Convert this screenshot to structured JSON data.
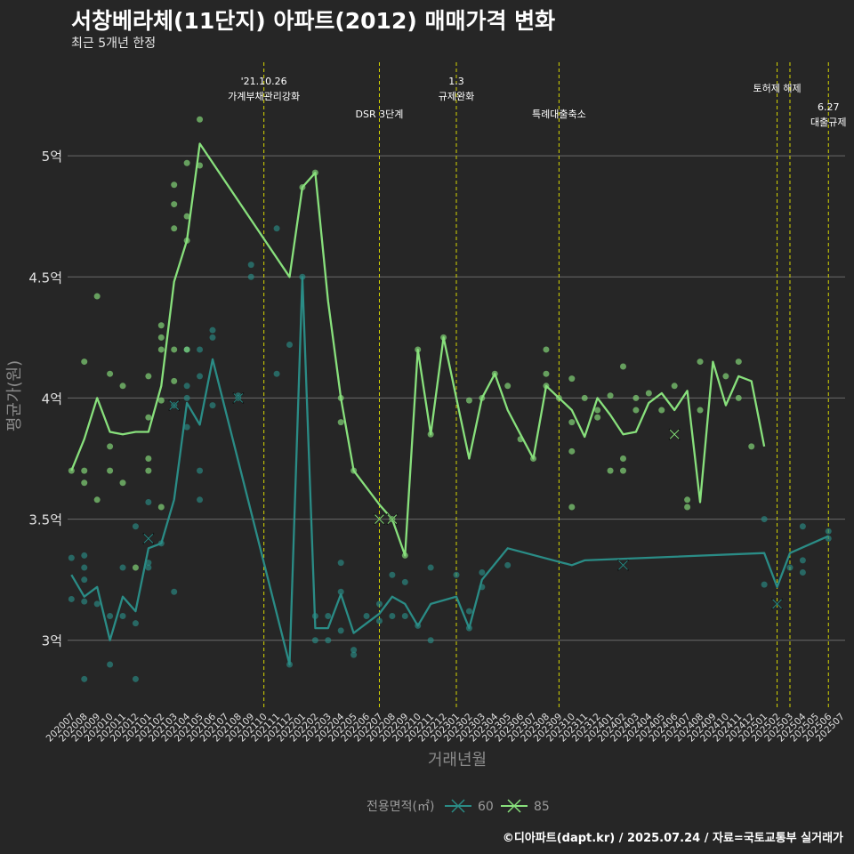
{
  "header": {
    "title": "서창베라체(11단지) 아파트(2012) 매매가격 변화",
    "subtitle": "최근 5개년 한정"
  },
  "footer": "©디아파트(dapt.kr) / 2025.07.24 / 자료=국토교통부 실거래가",
  "colors": {
    "background": "#262626",
    "grid": "#6a6a6a",
    "event_line": "#d6d600",
    "series_60": "#2a8c86",
    "series_85": "#88e07c"
  },
  "chart_data": {
    "type": "line",
    "xlabel": "거래년월",
    "ylabel": "평균가(원)",
    "ylim": [
      2.72,
      5.43
    ],
    "y_ticks": [
      3.0,
      3.5,
      4.0,
      4.5,
      5.0
    ],
    "y_tick_labels": [
      "3억",
      "3.5억",
      "4억",
      "4.5억",
      "5억"
    ],
    "categories": [
      "202007",
      "202008",
      "202009",
      "202010",
      "202011",
      "202012",
      "202101",
      "202102",
      "202103",
      "202104",
      "202105",
      "202106",
      "202107",
      "202108",
      "202109",
      "202110",
      "202111",
      "202112",
      "202201",
      "202202",
      "202203",
      "202204",
      "202205",
      "202206",
      "202207",
      "202208",
      "202209",
      "202210",
      "202211",
      "202212",
      "202301",
      "202302",
      "202303",
      "202304",
      "202305",
      "202306",
      "202307",
      "202308",
      "202309",
      "202310",
      "202311",
      "202312",
      "202401",
      "202402",
      "202403",
      "202404",
      "202405",
      "202406",
      "202407",
      "202408",
      "202409",
      "202410",
      "202411",
      "202412",
      "202501",
      "202502",
      "202503",
      "202504",
      "202505",
      "202506",
      "202507"
    ],
    "legend": {
      "title": "전용면적(㎡)",
      "position": "bottom",
      "entries": [
        "60",
        "85"
      ]
    },
    "series": [
      {
        "name": "60",
        "line": [
          [
            "202007",
            3.27
          ],
          [
            "202008",
            3.18
          ],
          [
            "202009",
            3.22
          ],
          [
            "202010",
            3.0
          ],
          [
            "202011",
            3.18
          ],
          [
            "202012",
            3.12
          ],
          [
            "202101",
            3.38
          ],
          [
            "202102",
            3.4
          ],
          [
            "202103",
            3.58
          ],
          [
            "202104",
            3.98
          ],
          [
            "202105",
            3.89
          ],
          [
            "202106",
            4.16
          ],
          [
            "202112",
            2.9
          ],
          [
            "202201",
            4.5
          ],
          [
            "202202",
            3.05
          ],
          [
            "202203",
            3.05
          ],
          [
            "202204",
            3.19
          ],
          [
            "202205",
            3.03
          ],
          [
            "202206",
            3.07
          ],
          [
            "202207",
            3.11
          ],
          [
            "202208",
            3.18
          ],
          [
            "202209",
            3.15
          ],
          [
            "202210",
            3.06
          ],
          [
            "202211",
            3.15
          ],
          [
            "202301",
            3.18
          ],
          [
            "202302",
            3.05
          ],
          [
            "202303",
            3.25
          ],
          [
            "202305",
            3.38
          ],
          [
            "202310",
            3.31
          ],
          [
            "202311",
            3.33
          ],
          [
            "202501",
            3.36
          ],
          [
            "202502",
            3.22
          ],
          [
            "202503",
            3.36
          ],
          [
            "202506",
            3.43
          ]
        ],
        "points": [
          [
            "202007",
            3.34
          ],
          [
            "202007",
            3.17
          ],
          [
            "202008",
            3.35
          ],
          [
            "202008",
            3.3
          ],
          [
            "202008",
            3.16
          ],
          [
            "202008",
            3.25
          ],
          [
            "202008",
            2.84
          ],
          [
            "202009",
            3.15
          ],
          [
            "202010",
            2.9
          ],
          [
            "202010",
            3.1
          ],
          [
            "202011",
            3.3
          ],
          [
            "202011",
            3.1
          ],
          [
            "202012",
            3.07
          ],
          [
            "202012",
            2.84
          ],
          [
            "202012",
            3.47
          ],
          [
            "202101",
            3.3
          ],
          [
            "202101",
            3.32
          ],
          [
            "202101",
            3.57
          ],
          [
            "202102",
            3.4
          ],
          [
            "202103",
            3.2
          ],
          [
            "202103",
            3.97
          ],
          [
            "202104",
            3.88
          ],
          [
            "202104",
            4.05
          ],
          [
            "202104",
            4.2
          ],
          [
            "202104",
            4.0
          ],
          [
            "202105",
            4.2
          ],
          [
            "202105",
            3.58
          ],
          [
            "202105",
            3.7
          ],
          [
            "202105",
            4.09
          ],
          [
            "202106",
            4.25
          ],
          [
            "202106",
            4.28
          ],
          [
            "202106",
            3.97
          ],
          [
            "202108",
            4.0
          ],
          [
            "202108",
            4.01
          ],
          [
            "202109",
            4.55
          ],
          [
            "202109",
            4.5
          ],
          [
            "202111",
            4.7
          ],
          [
            "202111",
            4.1
          ],
          [
            "202112",
            4.22
          ],
          [
            "202112",
            2.9
          ],
          [
            "202201",
            4.5
          ],
          [
            "202202",
            3.0
          ],
          [
            "202202",
            3.1
          ],
          [
            "202203",
            3.0
          ],
          [
            "202203",
            3.1
          ],
          [
            "202204",
            3.04
          ],
          [
            "202204",
            3.2
          ],
          [
            "202204",
            3.32
          ],
          [
            "202205",
            2.96
          ],
          [
            "202205",
            2.94
          ],
          [
            "202206",
            3.1
          ],
          [
            "202207",
            3.15
          ],
          [
            "202207",
            3.08
          ],
          [
            "202208",
            3.1
          ],
          [
            "202208",
            3.27
          ],
          [
            "202209",
            3.1
          ],
          [
            "202209",
            3.24
          ],
          [
            "202210",
            3.06
          ],
          [
            "202211",
            3.3
          ],
          [
            "202211",
            3.0
          ],
          [
            "202301",
            3.27
          ],
          [
            "202302",
            3.12
          ],
          [
            "202302",
            3.05
          ],
          [
            "202303",
            3.22
          ],
          [
            "202303",
            3.28
          ],
          [
            "202305",
            3.31
          ],
          [
            "202501",
            3.5
          ],
          [
            "202501",
            3.23
          ],
          [
            "202503",
            3.3
          ],
          [
            "202504",
            3.47
          ],
          [
            "202504",
            3.33
          ],
          [
            "202504",
            3.28
          ],
          [
            "202506",
            3.45
          ],
          [
            "202506",
            3.42
          ]
        ],
        "cross_marks": [
          [
            "202101",
            3.42
          ],
          [
            "202103",
            3.97
          ],
          [
            "202108",
            4.0
          ],
          [
            "202402",
            3.31
          ],
          [
            "202502",
            3.15
          ]
        ]
      },
      {
        "name": "85",
        "line": [
          [
            "202007",
            3.7
          ],
          [
            "202008",
            3.83
          ],
          [
            "202009",
            4.0
          ],
          [
            "202010",
            3.86
          ],
          [
            "202011",
            3.85
          ],
          [
            "202012",
            3.86
          ],
          [
            "202101",
            3.86
          ],
          [
            "202102",
            4.05
          ],
          [
            "202103",
            4.48
          ],
          [
            "202104",
            4.65
          ],
          [
            "202105",
            5.05
          ],
          [
            "202112",
            4.5
          ],
          [
            "202201",
            4.87
          ],
          [
            "202202",
            4.93
          ],
          [
            "202203",
            4.4
          ],
          [
            "202204",
            4.0
          ],
          [
            "202205",
            3.7
          ],
          [
            "202207",
            3.56
          ],
          [
            "202208",
            3.5
          ],
          [
            "202209",
            3.35
          ],
          [
            "202210",
            4.2
          ],
          [
            "202211",
            3.85
          ],
          [
            "202212",
            4.25
          ],
          [
            "202301",
            4.0
          ],
          [
            "202302",
            3.75
          ],
          [
            "202303",
            4.0
          ],
          [
            "202304",
            4.1
          ],
          [
            "202305",
            3.95
          ],
          [
            "202306",
            3.85
          ],
          [
            "202307",
            3.75
          ],
          [
            "202308",
            4.05
          ],
          [
            "202309",
            4.0
          ],
          [
            "202310",
            3.95
          ],
          [
            "202311",
            3.84
          ],
          [
            "202312",
            4.0
          ],
          [
            "202401",
            3.93
          ],
          [
            "202402",
            3.85
          ],
          [
            "202403",
            3.86
          ],
          [
            "202404",
            3.98
          ],
          [
            "202405",
            4.02
          ],
          [
            "202406",
            3.95
          ],
          [
            "202407",
            4.03
          ],
          [
            "202408",
            3.57
          ],
          [
            "202409",
            4.15
          ],
          [
            "202410",
            3.97
          ],
          [
            "202411",
            4.09
          ],
          [
            "202412",
            4.07
          ],
          [
            "202501",
            3.8
          ]
        ],
        "points": [
          [
            "202007",
            3.7
          ],
          [
            "202008",
            4.15
          ],
          [
            "202008",
            3.65
          ],
          [
            "202008",
            3.7
          ],
          [
            "202009",
            4.42
          ],
          [
            "202009",
            3.58
          ],
          [
            "202010",
            4.1
          ],
          [
            "202010",
            3.8
          ],
          [
            "202010",
            3.7
          ],
          [
            "202011",
            4.05
          ],
          [
            "202011",
            3.65
          ],
          [
            "202012",
            3.3
          ],
          [
            "202101",
            4.09
          ],
          [
            "202101",
            3.75
          ],
          [
            "202101",
            3.7
          ],
          [
            "202101",
            3.92
          ],
          [
            "202102",
            4.3
          ],
          [
            "202102",
            4.25
          ],
          [
            "202102",
            4.2
          ],
          [
            "202102",
            3.99
          ],
          [
            "202102",
            3.55
          ],
          [
            "202103",
            4.88
          ],
          [
            "202103",
            4.8
          ],
          [
            "202103",
            4.7
          ],
          [
            "202103",
            4.2
          ],
          [
            "202103",
            4.07
          ],
          [
            "202104",
            4.97
          ],
          [
            "202104",
            4.75
          ],
          [
            "202104",
            4.65
          ],
          [
            "202104",
            4.2
          ],
          [
            "202105",
            5.15
          ],
          [
            "202105",
            4.96
          ],
          [
            "202201",
            4.87
          ],
          [
            "202202",
            4.93
          ],
          [
            "202204",
            4.0
          ],
          [
            "202204",
            3.9
          ],
          [
            "202205",
            3.7
          ],
          [
            "202208",
            3.5
          ],
          [
            "202209",
            3.35
          ],
          [
            "202210",
            4.2
          ],
          [
            "202211",
            3.85
          ],
          [
            "202212",
            4.25
          ],
          [
            "202302",
            3.99
          ],
          [
            "202303",
            4.0
          ],
          [
            "202304",
            4.1
          ],
          [
            "202305",
            4.05
          ],
          [
            "202306",
            3.83
          ],
          [
            "202307",
            3.75
          ],
          [
            "202308",
            4.05
          ],
          [
            "202308",
            4.2
          ],
          [
            "202308",
            4.1
          ],
          [
            "202309",
            4.0
          ],
          [
            "202310",
            3.9
          ],
          [
            "202310",
            3.78
          ],
          [
            "202310",
            4.08
          ],
          [
            "202310",
            3.55
          ],
          [
            "202311",
            4.0
          ],
          [
            "202312",
            3.95
          ],
          [
            "202312",
            3.92
          ],
          [
            "202401",
            4.01
          ],
          [
            "202401",
            3.7
          ],
          [
            "202402",
            4.13
          ],
          [
            "202402",
            3.75
          ],
          [
            "202402",
            3.7
          ],
          [
            "202403",
            4.0
          ],
          [
            "202403",
            3.95
          ],
          [
            "202404",
            4.02
          ],
          [
            "202405",
            3.95
          ],
          [
            "202406",
            4.05
          ],
          [
            "202407",
            3.58
          ],
          [
            "202407",
            3.55
          ],
          [
            "202408",
            4.15
          ],
          [
            "202408",
            3.95
          ],
          [
            "202410",
            4.09
          ],
          [
            "202411",
            4.15
          ],
          [
            "202411",
            4.0
          ],
          [
            "202412",
            3.8
          ]
        ],
        "cross_marks": [
          [
            "202207",
            3.5
          ],
          [
            "202208",
            3.5
          ],
          [
            "202406",
            3.85
          ]
        ]
      }
    ],
    "events": [
      {
        "at": "202110",
        "label": "'21.10.26\n가계부채관리강화",
        "row": 0
      },
      {
        "at": "202207",
        "label": "DSR 3단계",
        "row": 1
      },
      {
        "at": "202301",
        "label": "1.3\n규제완화",
        "row": 0
      },
      {
        "at": "202309",
        "label": "특례대출축소",
        "row": 1
      },
      {
        "at": "202502",
        "label": "토허제 해제",
        "row": 0
      },
      {
        "at": "202503",
        "label": "",
        "row": 0
      },
      {
        "at": "202506",
        "label": "6.27\n대출규제",
        "row": 1
      }
    ]
  }
}
